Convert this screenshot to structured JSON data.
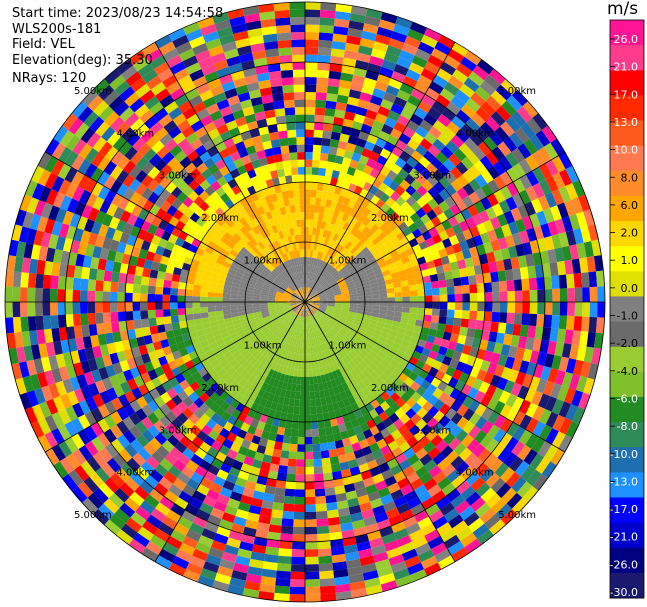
{
  "header": {
    "start_time": "Start time: 2023/08/23 14:54:58",
    "instrument": "WLS200s-181",
    "field": "Field: VEL",
    "elevation": "Elevation(deg): 35.30",
    "nrays": "NRays: 120"
  },
  "colorbar": {
    "unit": "m/s",
    "ticks": [
      "26.0",
      "21.0",
      "17.0",
      "13.0",
      "10.0",
      "8.0",
      "6.0",
      "2.0",
      "1.0",
      "0.0",
      "-1.0",
      "-2.0",
      "-4.0",
      "-6.0",
      "-8.0",
      "-10.0",
      "-13.0",
      "-17.0",
      "-21.0",
      "-26.0",
      "-30.0"
    ],
    "colors": [
      "#ff1493",
      "#ff3c8c",
      "#ff0000",
      "#ff2a00",
      "#ff5a1e",
      "#ff7a50",
      "#ff8c28",
      "#ffa500",
      "#ffd700",
      "#ffff00",
      "#e0e000",
      "#808080",
      "#6b6b6b",
      "#9acd32",
      "#7fbf2a",
      "#228b22",
      "#2e8b57",
      "#1e6fb0",
      "#1e90ff",
      "#0000ff",
      "#0000cd",
      "#000080",
      "#191970"
    ]
  },
  "chart_data": {
    "type": "heatmap",
    "title": "",
    "field": "VEL",
    "unit": "m/s",
    "nrays": 120,
    "elevation_deg": 35.3,
    "range_ring_labels": [
      "1.00km",
      "2.00km",
      "3.00km",
      "4.00km",
      "5.00km"
    ],
    "range_rings_km": [
      1,
      2,
      3,
      4,
      5
    ],
    "max_range_km": 5.0,
    "value_range": [
      -30,
      26
    ],
    "pattern": {
      "core_gray_km": [
        0,
        0.8
      ],
      "inner_zone_km": [
        0.8,
        2.0
      ],
      "north_half_velocity_ms": 6,
      "south_half_velocity_ms": -4,
      "noise_beyond_km": 2.3
    },
    "grid": true
  }
}
